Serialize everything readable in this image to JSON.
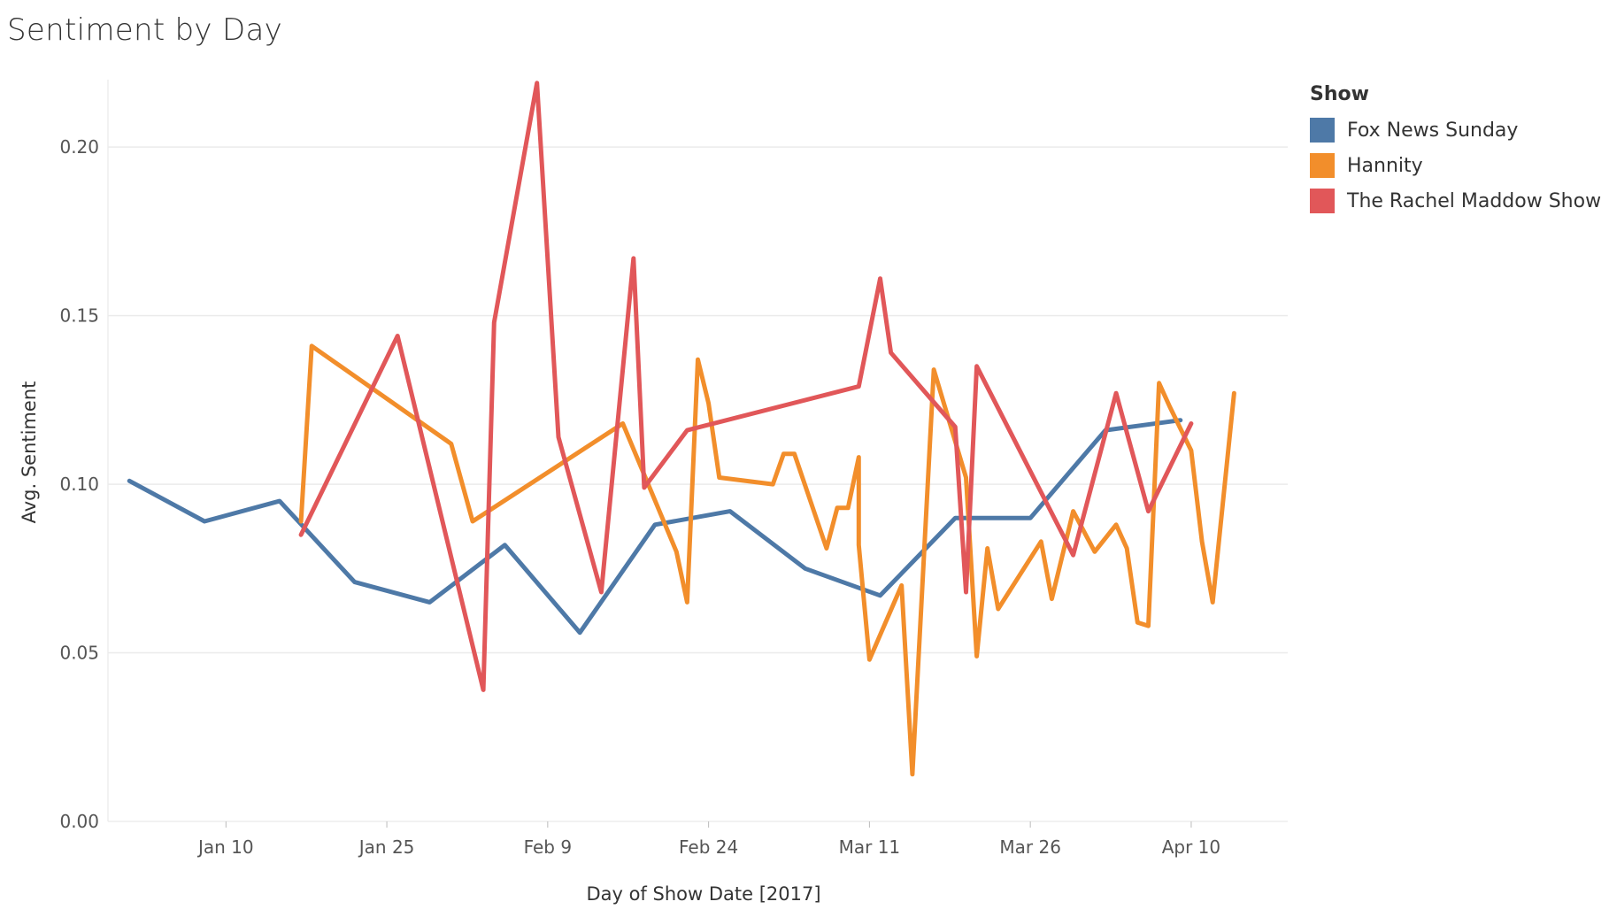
{
  "chart_data": {
    "type": "line",
    "title": "Sentiment by Day",
    "xlabel": "Day of Show Date [2017]",
    "ylabel": "Avg. Sentiment",
    "ylim": [
      0,
      0.22
    ],
    "yticks": [
      0.0,
      0.05,
      0.1,
      0.15,
      0.2
    ],
    "ytick_labels": [
      "0.00",
      "0.05",
      "0.10",
      "0.15",
      "0.20"
    ],
    "xticks": [
      "2017-01-10",
      "2017-01-25",
      "2017-02-09",
      "2017-02-24",
      "2017-03-11",
      "2017-03-26",
      "2017-04-10"
    ],
    "xtick_labels": [
      "Jan 10",
      "Jan 25",
      "Feb 9",
      "Feb 24",
      "Mar 11",
      "Mar 26",
      "Apr 10"
    ],
    "xlim": [
      "2016-12-30",
      "2017-04-19"
    ],
    "grid": "horizontal",
    "legend": {
      "title": "Show",
      "placement": "right"
    },
    "series": [
      {
        "name": "Fox News Sunday",
        "color": "#4e79a7",
        "points": [
          [
            "2017-01-01",
            0.101
          ],
          [
            "2017-01-08",
            0.089
          ],
          [
            "2017-01-15",
            0.095
          ],
          [
            "2017-01-22",
            0.071
          ],
          [
            "2017-01-29",
            0.065
          ],
          [
            "2017-02-05",
            0.082
          ],
          [
            "2017-02-12",
            0.056
          ],
          [
            "2017-02-19",
            0.088
          ],
          [
            "2017-02-26",
            0.092
          ],
          [
            "2017-03-05",
            0.075
          ],
          [
            "2017-03-12",
            0.067
          ],
          [
            "2017-03-19",
            0.09
          ],
          [
            "2017-03-26",
            0.09
          ],
          [
            "2017-04-02",
            0.116
          ],
          [
            "2017-04-09",
            0.119
          ]
        ]
      },
      {
        "name": "Hannity",
        "color": "#f28e2b",
        "points": [
          [
            "2017-01-17",
            0.089
          ],
          [
            "2017-01-18",
            0.141
          ],
          [
            "2017-01-31",
            0.112
          ],
          [
            "2017-02-02",
            0.089
          ],
          [
            "2017-02-16",
            0.118
          ],
          [
            "2017-02-21",
            0.08
          ],
          [
            "2017-02-22",
            0.065
          ],
          [
            "2017-02-23",
            0.137
          ],
          [
            "2017-02-24",
            0.124
          ],
          [
            "2017-02-25",
            0.102
          ],
          [
            "2017-03-02",
            0.1
          ],
          [
            "2017-03-03",
            0.109
          ],
          [
            "2017-03-04",
            0.109
          ],
          [
            "2017-03-07",
            0.081
          ],
          [
            "2017-03-08",
            0.093
          ],
          [
            "2017-03-09",
            0.093
          ],
          [
            "2017-03-10",
            0.108
          ],
          [
            "2017-03-10",
            0.082
          ],
          [
            "2017-03-11",
            0.048
          ],
          [
            "2017-03-14",
            0.07
          ],
          [
            "2017-03-15",
            0.014
          ],
          [
            "2017-03-17",
            0.134
          ],
          [
            "2017-03-20",
            0.102
          ],
          [
            "2017-03-21",
            0.049
          ],
          [
            "2017-03-22",
            0.081
          ],
          [
            "2017-03-23",
            0.063
          ],
          [
            "2017-03-27",
            0.083
          ],
          [
            "2017-03-28",
            0.066
          ],
          [
            "2017-03-30",
            0.092
          ],
          [
            "2017-04-01",
            0.08
          ],
          [
            "2017-04-03",
            0.088
          ],
          [
            "2017-04-04",
            0.081
          ],
          [
            "2017-04-05",
            0.059
          ],
          [
            "2017-04-06",
            0.058
          ],
          [
            "2017-04-07",
            0.13
          ],
          [
            "2017-04-08",
            0.123
          ],
          [
            "2017-04-10",
            0.11
          ],
          [
            "2017-04-11",
            0.083
          ],
          [
            "2017-04-12",
            0.065
          ],
          [
            "2017-04-14",
            0.127
          ]
        ]
      },
      {
        "name": "The Rachel Maddow Show",
        "color": "#e15759",
        "points": [
          [
            "2017-01-17",
            0.085
          ],
          [
            "2017-01-26",
            0.144
          ],
          [
            "2017-02-03",
            0.039
          ],
          [
            "2017-02-04",
            0.148
          ],
          [
            "2017-02-08",
            0.219
          ],
          [
            "2017-02-10",
            0.114
          ],
          [
            "2017-02-14",
            0.068
          ],
          [
            "2017-02-17",
            0.167
          ],
          [
            "2017-02-18",
            0.099
          ],
          [
            "2017-02-22",
            0.116
          ],
          [
            "2017-03-10",
            0.129
          ],
          [
            "2017-03-12",
            0.161
          ],
          [
            "2017-03-13",
            0.139
          ],
          [
            "2017-03-19",
            0.117
          ],
          [
            "2017-03-20",
            0.068
          ],
          [
            "2017-03-21",
            0.135
          ],
          [
            "2017-03-30",
            0.079
          ],
          [
            "2017-04-03",
            0.127
          ],
          [
            "2017-04-06",
            0.092
          ],
          [
            "2017-04-10",
            0.118
          ]
        ]
      }
    ]
  }
}
